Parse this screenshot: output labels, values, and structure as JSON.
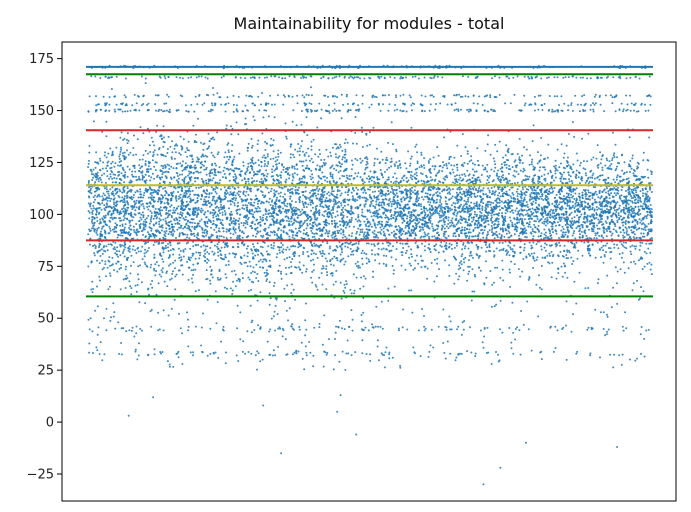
{
  "chart_data": {
    "type": "scatter",
    "title": "Maintainability for modules - total",
    "xlabel": "",
    "ylabel": "",
    "ylim": [
      -38,
      183
    ],
    "yticks": [
      -25,
      0,
      25,
      50,
      75,
      100,
      125,
      150,
      175
    ],
    "x_ticks_shown": false,
    "grid": false,
    "legend": "none",
    "n_points_approx": 9000,
    "distribution": {
      "center": 103,
      "core_band": [
        83,
        130
      ],
      "banded_values": [
        171,
        166,
        157,
        153,
        150,
        45,
        33
      ],
      "sparse_outliers_y": [
        -30,
        -22,
        -15,
        -12,
        -10,
        -6,
        3,
        5,
        8,
        12,
        13
      ]
    },
    "reference_lines": [
      {
        "y": 171.0,
        "color": "#1f77b4"
      },
      {
        "y": 167.5,
        "color": "#008000"
      },
      {
        "y": 140.5,
        "color": "#d62728"
      },
      {
        "y": 114.0,
        "color": "#bcbd22"
      },
      {
        "y": 87.5,
        "color": "#d62728"
      },
      {
        "y": 60.5,
        "color": "#008000"
      }
    ],
    "colors": {
      "points": "#1f77b4",
      "axes": "#000000"
    }
  }
}
